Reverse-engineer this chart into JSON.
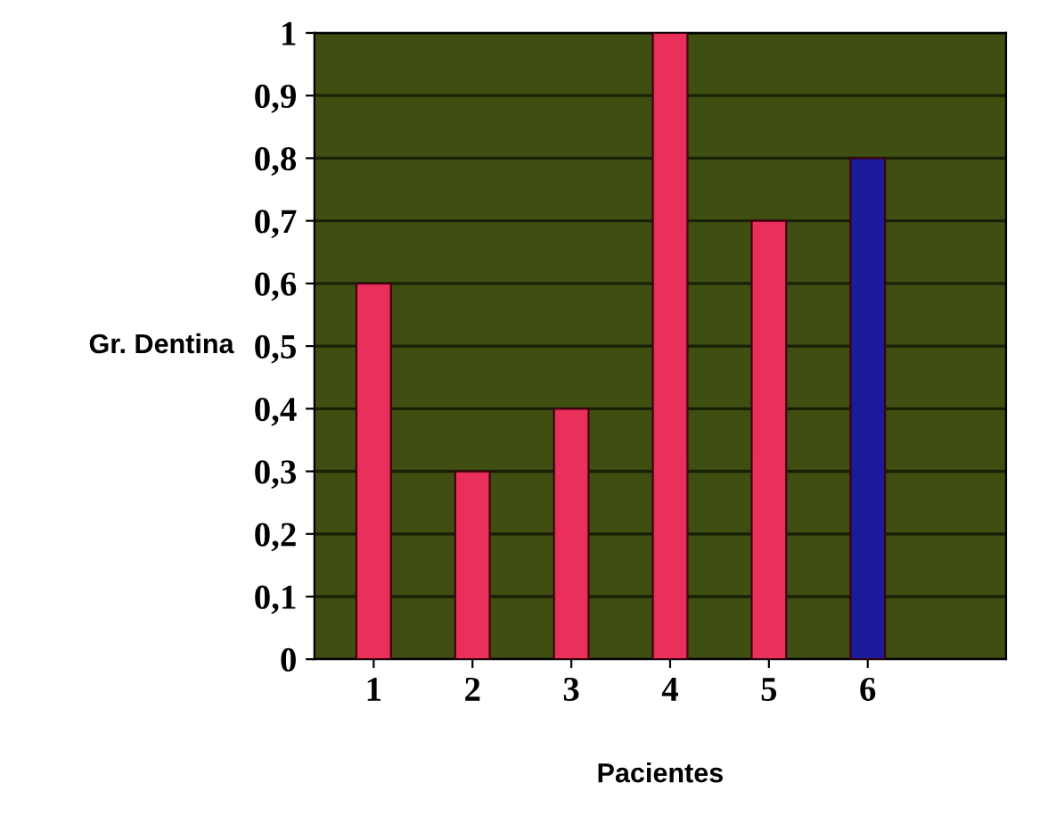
{
  "chart_data": {
    "type": "bar",
    "xlabel": "Pacientes",
    "ylabel": "Gr. Dentina",
    "categories": [
      "1",
      "2",
      "3",
      "4",
      "5",
      "6"
    ],
    "values": [
      0.6,
      0.3,
      0.4,
      1,
      0.7,
      0.8
    ],
    "colors": [
      "#e8305a",
      "#e8305a",
      "#e8305a",
      "#e8305a",
      "#e8305a",
      "#1a1a9a"
    ],
    "ylim": [
      0,
      1
    ],
    "yticks": [
      0,
      {
        "value": 0.1,
        "label": "0,1"
      },
      {
        "value": 0.2,
        "label": "0,2"
      },
      {
        "value": 0.3,
        "label": "0,3"
      },
      {
        "value": 0.4,
        "label": "0,4"
      },
      {
        "value": 0.5,
        "label": "0,5"
      },
      {
        "value": 0.6,
        "label": "0,6"
      },
      {
        "value": 0.7,
        "label": "0,7"
      },
      {
        "value": 0.8,
        "label": "0,8"
      },
      {
        "value": 0.9,
        "label": "0,9"
      },
      1
    ],
    "grid": "y"
  }
}
